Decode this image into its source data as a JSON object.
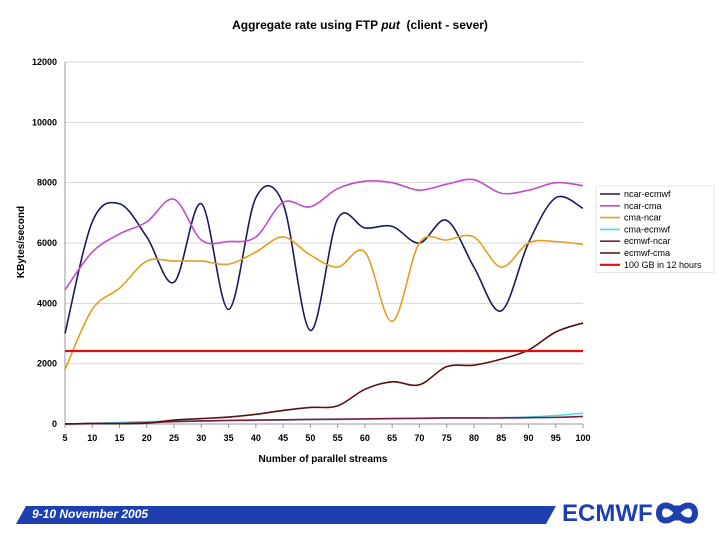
{
  "chart_data": {
    "type": "line",
    "title_pre": "Aggregate rate using FTP ",
    "title_em": "put",
    "title_post": "  (client - sever)",
    "xlabel": "Number of parallel streams",
    "ylabel": "KBytes/second",
    "x": [
      5,
      10,
      15,
      20,
      25,
      30,
      35,
      40,
      45,
      50,
      55,
      60,
      65,
      70,
      75,
      80,
      85,
      90,
      95,
      100
    ],
    "xlim": [
      5,
      100
    ],
    "ylim": [
      0,
      12000
    ],
    "yticks": [
      0,
      2000,
      4000,
      6000,
      8000,
      10000,
      12000
    ],
    "xticks": [
      5,
      10,
      15,
      20,
      25,
      30,
      35,
      40,
      45,
      50,
      55,
      60,
      65,
      70,
      75,
      80,
      85,
      90,
      95,
      100
    ],
    "series": [
      {
        "name": "ncar-ecmwf",
        "color": "#1a1a5e",
        "values": [
          3000,
          6700,
          7300,
          6200,
          4700,
          7300,
          3800,
          7500,
          7300,
          3100,
          6800,
          6500,
          6550,
          6000,
          6750,
          5200,
          3750,
          6000,
          7500,
          7150
        ]
      },
      {
        "name": "ncar-cma",
        "color": "#c44ad0",
        "values": [
          4450,
          5700,
          6300,
          6700,
          7450,
          6100,
          6050,
          6200,
          7350,
          7200,
          7800,
          8050,
          8000,
          7750,
          7950,
          8100,
          7650,
          7750,
          8000,
          7900
        ]
      },
      {
        "name": "cma-ncar",
        "color": "#e0a020",
        "values": [
          1800,
          3800,
          4500,
          5400,
          5400,
          5400,
          5300,
          5700,
          6200,
          5600,
          5200,
          5700,
          3400,
          6000,
          6100,
          6200,
          5200,
          6000,
          6050,
          5950
        ]
      },
      {
        "name": "cma-ecmwf",
        "color": "#40e0e8",
        "values": [
          0,
          20,
          50,
          80,
          90,
          100,
          110,
          120,
          130,
          150,
          150,
          160,
          180,
          190,
          200,
          200,
          210,
          230,
          280,
          360
        ]
      },
      {
        "name": "ecmwf-ncar",
        "color": "#7a1c44",
        "values": [
          0,
          10,
          20,
          40,
          80,
          100,
          120,
          130,
          140,
          150,
          160,
          170,
          180,
          190,
          200,
          200,
          200,
          210,
          220,
          250
        ]
      },
      {
        "name": "ecmwf-cma",
        "color": "#5a0f10",
        "values": [
          0,
          20,
          10,
          30,
          130,
          180,
          230,
          320,
          450,
          550,
          600,
          1150,
          1400,
          1300,
          1900,
          1950,
          2150,
          2450,
          3050,
          3350
        ]
      },
      {
        "name": "100 GB in 12 hours",
        "color": "#e01010",
        "values": [
          2420,
          2420,
          2420,
          2420,
          2420,
          2420,
          2420,
          2420,
          2420,
          2420,
          2420,
          2420,
          2420,
          2420,
          2420,
          2420,
          2420,
          2420,
          2420,
          2420
        ]
      }
    ]
  },
  "footer": {
    "date": "9-10 November 2005",
    "logo_text": "ECMWF"
  },
  "colors": {
    "footer_blue": "#1e3fb0"
  }
}
